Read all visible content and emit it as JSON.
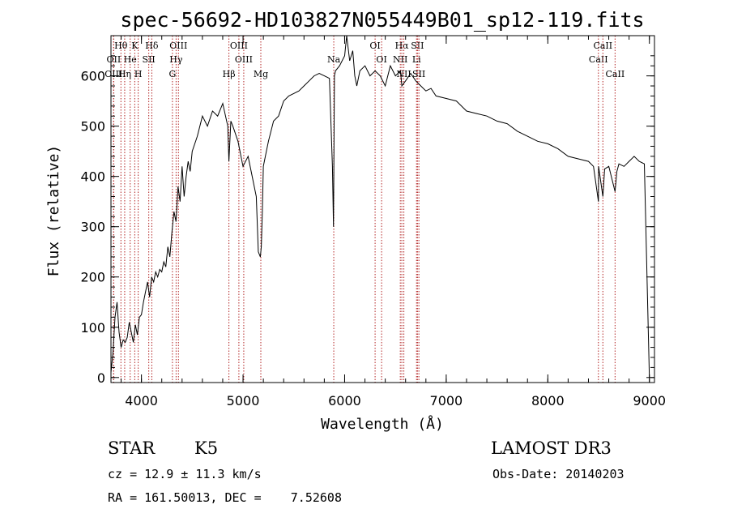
{
  "chart_data": {
    "type": "line",
    "title": "spec-56692-HD103827N055449B01_sp12-119.fits",
    "xlabel": "Wavelength (Å)",
    "ylabel": "Flux (relative)",
    "xlim": [
      3700,
      9050
    ],
    "ylim": [
      -10,
      680
    ],
    "xticks": [
      4000,
      5000,
      6000,
      7000,
      8000,
      9000
    ],
    "yticks": [
      0,
      100,
      200,
      300,
      400,
      500,
      600
    ],
    "series": [
      {
        "name": "flux",
        "x": [
          3700,
          3720,
          3740,
          3760,
          3780,
          3800,
          3820,
          3840,
          3860,
          3880,
          3900,
          3920,
          3940,
          3960,
          3980,
          4000,
          4020,
          4040,
          4060,
          4080,
          4100,
          4120,
          4140,
          4160,
          4180,
          4200,
          4220,
          4240,
          4260,
          4280,
          4300,
          4320,
          4340,
          4360,
          4380,
          4400,
          4420,
          4440,
          4460,
          4480,
          4500,
          4550,
          4600,
          4650,
          4700,
          4750,
          4800,
          4850,
          4861,
          4880,
          4900,
          4950,
          5000,
          5050,
          5100,
          5130,
          5150,
          5170,
          5180,
          5190,
          5200,
          5220,
          5250,
          5300,
          5350,
          5400,
          5450,
          5500,
          5550,
          5600,
          5650,
          5700,
          5750,
          5800,
          5850,
          5880,
          5890,
          5896,
          5900,
          5910,
          5950,
          6000,
          6020,
          6050,
          6080,
          6100,
          6120,
          6150,
          6200,
          6250,
          6300,
          6350,
          6400,
          6450,
          6500,
          6550,
          6563,
          6600,
          6650,
          6700,
          6750,
          6800,
          6850,
          6900,
          7000,
          7100,
          7200,
          7300,
          7400,
          7500,
          7600,
          7700,
          7800,
          7900,
          8000,
          8100,
          8200,
          8300,
          8400,
          8450,
          8498,
          8500,
          8542,
          8560,
          8600,
          8662,
          8680,
          8700,
          8750,
          8800,
          8850,
          8900,
          8950,
          9000
        ],
        "values": [
          10,
          50,
          120,
          150,
          90,
          60,
          75,
          70,
          80,
          110,
          90,
          70,
          105,
          85,
          120,
          125,
          150,
          170,
          190,
          160,
          200,
          190,
          210,
          200,
          215,
          210,
          230,
          220,
          260,
          240,
          290,
          330,
          310,
          380,
          350,
          420,
          360,
          400,
          430,
          410,
          450,
          480,
          520,
          500,
          530,
          520,
          545,
          500,
          430,
          510,
          500,
          470,
          420,
          440,
          390,
          360,
          250,
          240,
          260,
          330,
          420,
          440,
          470,
          510,
          520,
          550,
          560,
          565,
          570,
          580,
          590,
          600,
          605,
          600,
          595,
          420,
          300,
          480,
          600,
          610,
          620,
          640,
          680,
          630,
          650,
          600,
          580,
          610,
          620,
          600,
          610,
          600,
          580,
          620,
          600,
          610,
          580,
          590,
          605,
          590,
          580,
          570,
          575,
          560,
          555,
          550,
          530,
          525,
          520,
          510,
          505,
          490,
          480,
          470,
          465,
          455,
          440,
          435,
          430,
          420,
          350,
          420,
          360,
          415,
          420,
          370,
          410,
          425,
          420,
          430,
          440,
          430,
          425,
          0
        ]
      }
    ],
    "lines": [
      {
        "name": "Hθ",
        "x": 3798,
        "row": 1
      },
      {
        "name": "OII",
        "x": 3727,
        "row": 2
      },
      {
        "name": "OIII",
        "x": 3726,
        "row": 3
      },
      {
        "name": "K",
        "x": 3934,
        "row": 1
      },
      {
        "name": "He",
        "x": 3889,
        "row": 2
      },
      {
        "name": "Hη",
        "x": 3835,
        "row": 3
      },
      {
        "name": "H",
        "x": 3968,
        "row": 3
      },
      {
        "name": "Hδ",
        "x": 4102,
        "row": 1
      },
      {
        "name": "SII",
        "x": 4072,
        "row": 2
      },
      {
        "name": "OIII",
        "x": 4364,
        "row": 1
      },
      {
        "name": "Hγ",
        "x": 4341,
        "row": 2
      },
      {
        "name": "G",
        "x": 4305,
        "row": 3
      },
      {
        "name": "OIII",
        "x": 4959,
        "row": 1
      },
      {
        "name": "OIII",
        "x": 5007,
        "row": 2
      },
      {
        "name": "Hβ",
        "x": 4861,
        "row": 3
      },
      {
        "name": "Mg",
        "x": 5175,
        "row": 3
      },
      {
        "name": "Na",
        "x": 5893,
        "row": 2
      },
      {
        "name": "OI",
        "x": 6300,
        "row": 1
      },
      {
        "name": "OI",
        "x": 6364,
        "row": 2
      },
      {
        "name": "Hα",
        "x": 6563,
        "row": 1
      },
      {
        "name": "SII",
        "x": 6717,
        "row": 1
      },
      {
        "name": "NII",
        "x": 6548,
        "row": 2
      },
      {
        "name": "Li",
        "x": 6708,
        "row": 2
      },
      {
        "name": "NII",
        "x": 6583,
        "row": 3
      },
      {
        "name": "SII",
        "x": 6731,
        "row": 3
      },
      {
        "name": "CaII",
        "x": 8498,
        "row": 2
      },
      {
        "name": "CaII",
        "x": 8542,
        "row": 1
      },
      {
        "name": "CaII",
        "x": 8662,
        "row": 3
      }
    ]
  },
  "info": {
    "class": "STAR",
    "subclass": "K5",
    "survey": "LAMOST DR3",
    "cz": "cz = 12.9 ± 11.3 km/s",
    "obsdate": "Obs-Date: 20140203",
    "radec": "RA = 161.50013, DEC =    7.52608"
  }
}
